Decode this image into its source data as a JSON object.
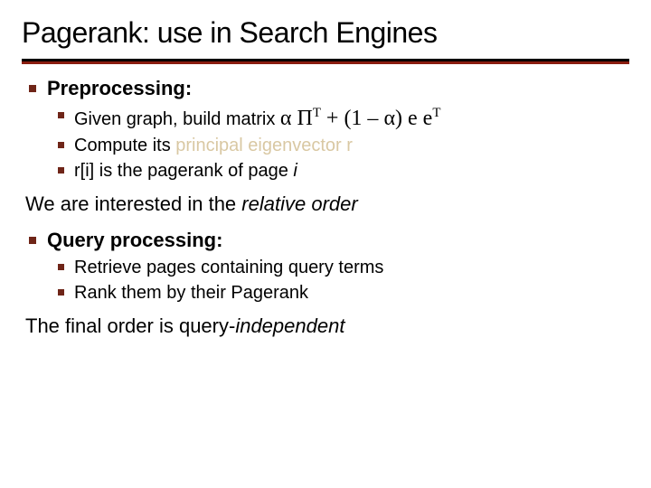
{
  "colors": {
    "text": "#000000",
    "background": "#ffffff",
    "rule_black": "#000000",
    "rule_red": "#8a1c0f",
    "bullet": "#6f2518",
    "accent_red": "#8a1c0f",
    "champagne": "#d9c8a3"
  },
  "fonts": {
    "title_size_pt": 32,
    "top_size_pt": 22,
    "sub_size_pt": 20,
    "math_size_pt": 24
  },
  "title": "Pagerank: use in Search Engines",
  "block1": {
    "heading": "Preprocessing:",
    "items": {
      "a_prefix": "Given graph, build matrix ",
      "a_math_alpha": "α",
      "a_math_Pi": "Π",
      "a_math_T": "T",
      "a_math_plus": " + (1 – ",
      "a_math_alpha2": "α",
      "a_math_close": ") e e",
      "a_math_T2": "T",
      "b_prefix": "Compute its ",
      "b_red": "principal eigenvector r",
      "c_prefix": "r[i] is the pagerank of page ",
      "c_i": "i"
    }
  },
  "inter1_prefix": "We are interested in the ",
  "inter1_italic": "relative order",
  "block2": {
    "heading": "Query processing:",
    "items": {
      "a": "Retrieve pages containing query terms",
      "b": "Rank them by their Pagerank"
    }
  },
  "inter2_prefix": "The final order is query-",
  "inter2_italic": "independent"
}
